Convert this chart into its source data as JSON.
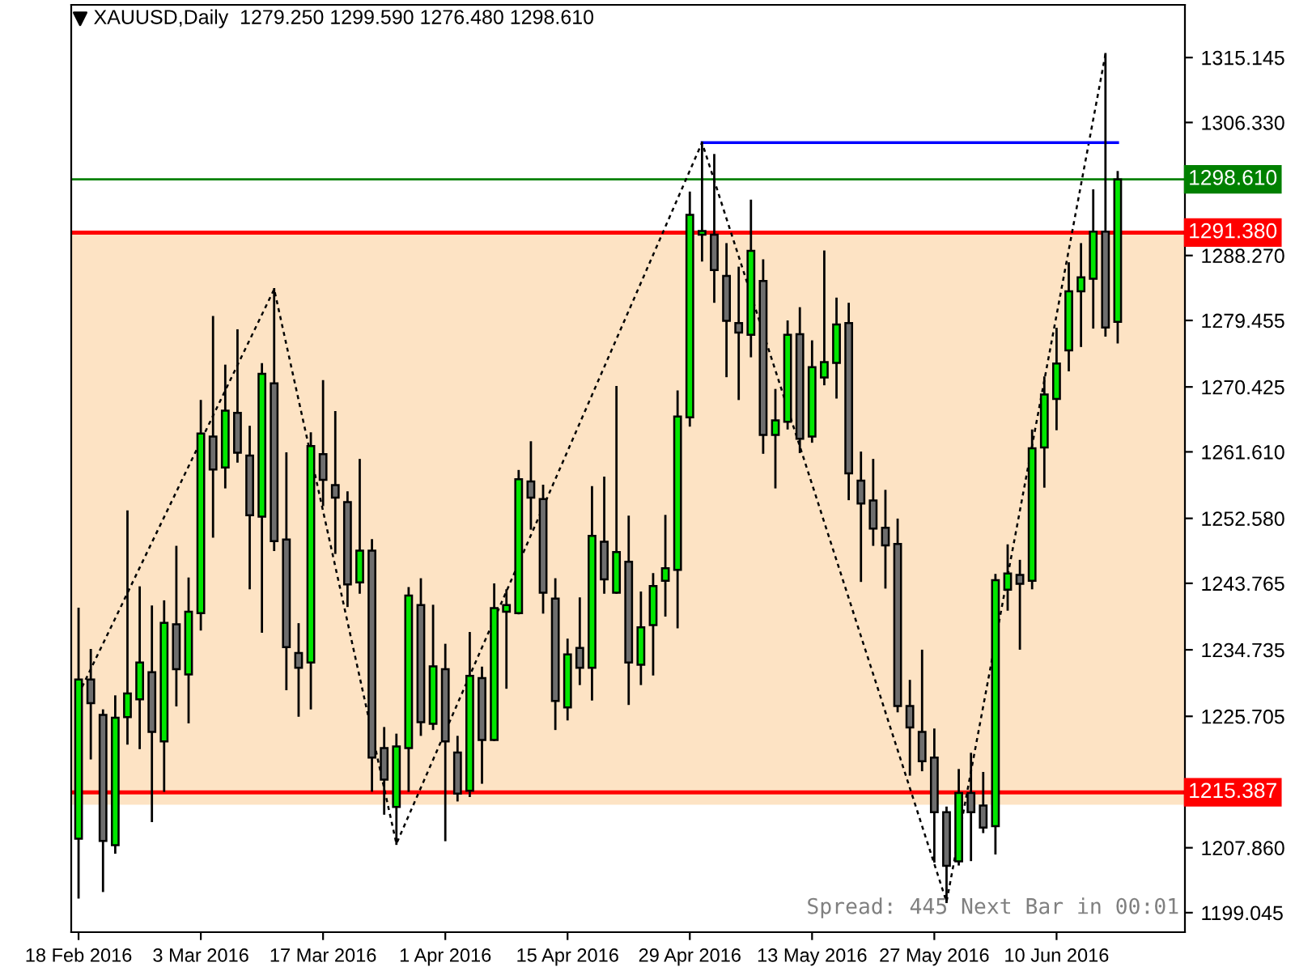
{
  "chart_data": {
    "type": "candlestick",
    "title": "XAUUSD,Daily  1279.250 1299.590 1276.480 1298.610",
    "annotations": [
      "Spread: 445 Next Bar in 00:01"
    ],
    "categories": [
      "18 Feb 2016",
      null,
      null,
      null,
      null,
      null,
      null,
      null,
      null,
      null,
      "3 Mar 2016",
      null,
      null,
      null,
      null,
      null,
      null,
      null,
      null,
      null,
      "17 Mar 2016",
      null,
      null,
      null,
      null,
      null,
      null,
      null,
      null,
      null,
      "1 Apr 2016",
      null,
      null,
      null,
      null,
      null,
      null,
      null,
      null,
      null,
      "15 Apr 2016",
      null,
      null,
      null,
      null,
      null,
      null,
      null,
      null,
      null,
      "29 Apr 2016",
      null,
      null,
      null,
      null,
      null,
      null,
      null,
      null,
      null,
      "13 May 2016",
      null,
      null,
      null,
      null,
      null,
      null,
      null,
      null,
      null,
      "27 May 2016",
      null,
      null,
      null,
      null,
      null,
      null,
      null,
      null,
      null,
      "10 Jun 2016",
      null,
      null,
      null,
      null,
      null
    ],
    "ohlc": [
      [
        1209.1,
        1240.3,
        1201.1,
        1230.7
      ],
      [
        1230.7,
        1234.7,
        1220.0,
        1227.5
      ],
      [
        1225.9,
        1226.5,
        1202.0,
        1208.8
      ],
      [
        1208.2,
        1228.4,
        1207.2,
        1225.5
      ],
      [
        1225.6,
        1253.5,
        1222.0,
        1228.8
      ],
      [
        1228.0,
        1243.2,
        1221.4,
        1233.0
      ],
      [
        1231.7,
        1240.6,
        1211.5,
        1223.6
      ],
      [
        1222.3,
        1241.3,
        1215.6,
        1238.4
      ],
      [
        1238.2,
        1248.7,
        1227.2,
        1232.1
      ],
      [
        1231.4,
        1244.4,
        1224.9,
        1239.9
      ],
      [
        1239.7,
        1268.5,
        1237.5,
        1264.1
      ],
      [
        1263.7,
        1279.9,
        1250.1,
        1259.2
      ],
      [
        1259.5,
        1273.3,
        1256.8,
        1267.2
      ],
      [
        1266.9,
        1278.1,
        1260.3,
        1261.5
      ],
      [
        1261.1,
        1265.0,
        1243.1,
        1253.0
      ],
      [
        1252.8,
        1273.5,
        1237.2,
        1272.2
      ],
      [
        1270.9,
        1283.7,
        1248.3,
        1249.5
      ],
      [
        1249.7,
        1261.4,
        1229.4,
        1235.1
      ],
      [
        1234.3,
        1238.2,
        1225.8,
        1232.3
      ],
      [
        1233.0,
        1264.1,
        1226.8,
        1262.4
      ],
      [
        1261.3,
        1271.2,
        1254.4,
        1257.8
      ],
      [
        1257.1,
        1267.0,
        1247.9,
        1255.4
      ],
      [
        1254.8,
        1256.1,
        1240.7,
        1243.6
      ],
      [
        1243.9,
        1260.5,
        1242.5,
        1248.2
      ],
      [
        1248.2,
        1249.6,
        1215.6,
        1220.1
      ],
      [
        1221.4,
        1224.1,
        1212.5,
        1217.1
      ],
      [
        1213.4,
        1223.2,
        1208.4,
        1221.6
      ],
      [
        1221.4,
        1243.1,
        1215.6,
        1242.1
      ],
      [
        1240.8,
        1244.3,
        1223.2,
        1224.9
      ],
      [
        1224.7,
        1240.7,
        1224.0,
        1232.5
      ],
      [
        1232.1,
        1235.4,
        1208.9,
        1222.3
      ],
      [
        1220.8,
        1222.9,
        1214.3,
        1215.2
      ],
      [
        1215.6,
        1237.0,
        1214.9,
        1231.2
      ],
      [
        1230.9,
        1232.3,
        1216.7,
        1222.5
      ],
      [
        1222.5,
        1243.6,
        1222.5,
        1240.4
      ],
      [
        1239.9,
        1242.8,
        1229.6,
        1240.8
      ],
      [
        1239.7,
        1259.0,
        1239.7,
        1257.9
      ],
      [
        1257.6,
        1262.9,
        1251.2,
        1255.4
      ],
      [
        1255.2,
        1257.0,
        1239.8,
        1242.5
      ],
      [
        1241.7,
        1244.3,
        1224.0,
        1227.8
      ],
      [
        1226.9,
        1236.1,
        1225.3,
        1234.1
      ],
      [
        1235.0,
        1241.7,
        1230.1,
        1232.3
      ],
      [
        1232.3,
        1256.8,
        1228.0,
        1250.2
      ],
      [
        1249.4,
        1258.1,
        1242.5,
        1244.3
      ],
      [
        1242.5,
        1270.4,
        1242.5,
        1248.0
      ],
      [
        1246.7,
        1252.8,
        1227.4,
        1233.0
      ],
      [
        1232.7,
        1242.5,
        1230.1,
        1237.8
      ],
      [
        1238.1,
        1245.0,
        1231.4,
        1243.4
      ],
      [
        1244.1,
        1252.9,
        1239.4,
        1245.8
      ],
      [
        1245.6,
        1269.8,
        1237.8,
        1266.4
      ],
      [
        1266.3,
        1296.8,
        1265.2,
        1293.8
      ],
      [
        1291.1,
        1303.6,
        1287.6,
        1291.6
      ],
      [
        1291.1,
        1301.9,
        1282.0,
        1286.3
      ],
      [
        1285.5,
        1289.8,
        1271.9,
        1279.4
      ],
      [
        1279.1,
        1286.6,
        1268.8,
        1277.8
      ],
      [
        1277.5,
        1295.7,
        1274.6,
        1288.9
      ],
      [
        1284.8,
        1287.6,
        1261.5,
        1263.9
      ],
      [
        1263.9,
        1270.0,
        1256.8,
        1265.9
      ],
      [
        1265.7,
        1279.3,
        1264.8,
        1277.5
      ],
      [
        1277.6,
        1281.1,
        1261.6,
        1263.4
      ],
      [
        1263.7,
        1276.6,
        1263.0,
        1273.1
      ],
      [
        1271.7,
        1288.8,
        1270.8,
        1273.8
      ],
      [
        1273.7,
        1282.4,
        1269.0,
        1278.9
      ],
      [
        1279.1,
        1281.7,
        1255.2,
        1258.7
      ],
      [
        1257.7,
        1261.5,
        1244.1,
        1254.6
      ],
      [
        1255.0,
        1260.5,
        1249.0,
        1251.2
      ],
      [
        1251.3,
        1256.3,
        1243.2,
        1248.9
      ],
      [
        1249.1,
        1252.4,
        1226.4,
        1227.1
      ],
      [
        1227.1,
        1230.5,
        1217.8,
        1224.2
      ],
      [
        1223.6,
        1234.6,
        1218.4,
        1219.6
      ],
      [
        1220.1,
        1223.9,
        1206.0,
        1212.7
      ],
      [
        1212.7,
        1213.3,
        1200.5,
        1205.4
      ],
      [
        1206.0,
        1218.4,
        1205.6,
        1215.3
      ],
      [
        1215.3,
        1220.6,
        1206.2,
        1212.7
      ],
      [
        1213.6,
        1218.0,
        1210.0,
        1210.6
      ],
      [
        1210.8,
        1244.9,
        1207.1,
        1244.2
      ],
      [
        1242.9,
        1248.9,
        1240.2,
        1245.1
      ],
      [
        1244.9,
        1246.8,
        1234.9,
        1243.7
      ],
      [
        1244.1,
        1264.5,
        1243.1,
        1262.1
      ],
      [
        1262.2,
        1271.7,
        1256.9,
        1269.4
      ],
      [
        1268.8,
        1278.3,
        1264.7,
        1273.6
      ],
      [
        1275.4,
        1287.2,
        1272.7,
        1283.4
      ],
      [
        1283.4,
        1289.8,
        1276.0,
        1285.3
      ],
      [
        1285.1,
        1297.1,
        1278.5,
        1291.5
      ],
      [
        1291.5,
        1315.6,
        1277.4,
        1278.5
      ],
      [
        1279.25,
        1299.59,
        1276.48,
        1298.61
      ]
    ],
    "series": [
      {
        "type": "line",
        "color": "#000000",
        "line_style": "dotted",
        "values": [
          1228.7,
          null,
          null,
          null,
          null,
          null,
          null,
          null,
          null,
          null,
          null,
          null,
          null,
          null,
          null,
          null,
          1283.7,
          null,
          null,
          null,
          null,
          null,
          null,
          null,
          null,
          null,
          1208.4,
          null,
          null,
          null,
          null,
          null,
          null,
          null,
          null,
          null,
          null,
          null,
          null,
          null,
          null,
          null,
          null,
          null,
          null,
          null,
          null,
          null,
          null,
          null,
          null,
          1303.6,
          null,
          null,
          null,
          null,
          null,
          null,
          null,
          null,
          null,
          null,
          null,
          null,
          null,
          null,
          null,
          null,
          null,
          null,
          null,
          1200.5,
          null,
          null,
          null,
          null,
          null,
          null,
          null,
          null,
          null,
          null,
          null,
          null,
          1315.6,
          null
        ]
      },
      {
        "type": "line",
        "color": "#0000ff",
        "line_style": "solid",
        "values": [
          null,
          null,
          null,
          null,
          null,
          null,
          null,
          null,
          null,
          null,
          null,
          null,
          null,
          null,
          null,
          null,
          null,
          null,
          null,
          null,
          null,
          null,
          null,
          null,
          null,
          null,
          null,
          null,
          null,
          null,
          null,
          null,
          null,
          null,
          null,
          null,
          null,
          null,
          null,
          null,
          null,
          null,
          null,
          null,
          null,
          null,
          null,
          null,
          null,
          null,
          null,
          1303.6,
          1303.6,
          1303.6,
          1303.6,
          1303.6,
          1303.6,
          1303.6,
          1303.6,
          1303.6,
          1303.6,
          1303.6,
          1303.6,
          1303.6,
          1303.6,
          1303.6,
          1303.6,
          1303.6,
          1303.6,
          1303.6,
          1303.6,
          1303.6,
          1303.6,
          1303.6,
          1303.6,
          1303.6,
          1303.6,
          1303.6,
          1303.6,
          1303.6,
          1303.6,
          1303.6,
          1303.6,
          1303.6,
          1303.6,
          1303.6
        ]
      }
    ],
    "ref_lines": [
      {
        "axis": "y",
        "value": 1298.61,
        "label": "1298.610",
        "color": "#008000"
      },
      {
        "axis": "y",
        "value": 1291.38,
        "label": "1291.380",
        "color": "#ff0000"
      },
      {
        "axis": "y",
        "value": 1215.387,
        "label": "1215.387",
        "color": "#ff0000"
      }
    ],
    "bands": [
      {
        "axis": "y",
        "from": 1213.7,
        "to": 1291.38,
        "color": "#fde3c4"
      }
    ],
    "ylim": [
      1196.4,
      1322.3
    ],
    "yticks": [
      1315.145,
      {
        "value": 1306.33,
        "label": "1306.330"
      },
      {
        "value": 1288.27,
        "label": "1288.270"
      },
      1279.455,
      1270.425,
      {
        "value": 1261.61,
        "label": "1261.610"
      },
      {
        "value": 1252.58,
        "label": "1252.580"
      },
      1243.765,
      1234.735,
      1225.705,
      {
        "value": 1207.86,
        "label": "1207.860"
      },
      1199.045
    ],
    "grid": false,
    "legend": false
  }
}
